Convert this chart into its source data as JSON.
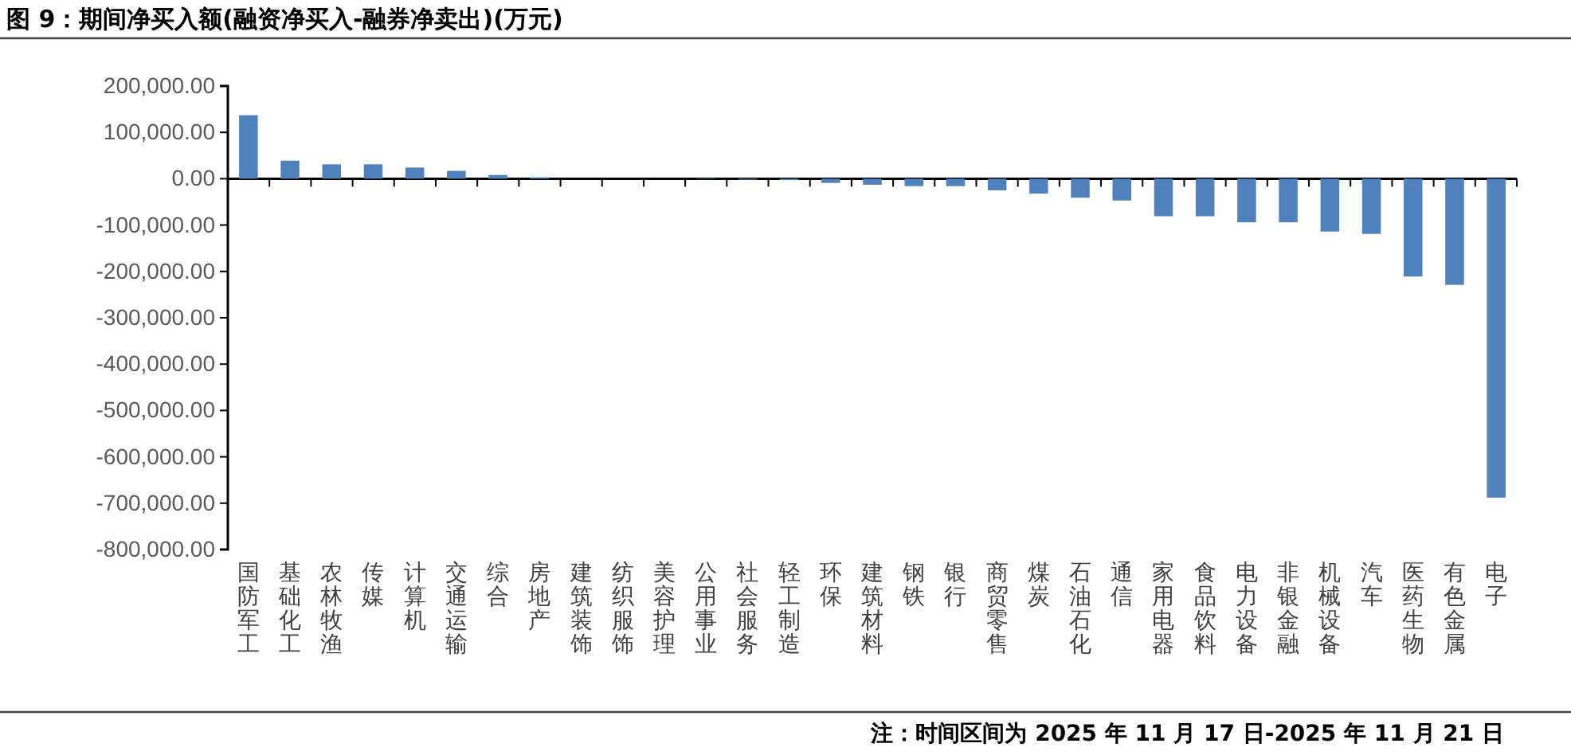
{
  "chart_data": {
    "type": "bar",
    "title": "图 9：期间净买入额(融资净买入-融券净卖出)(万元)",
    "categories": [
      "国防军工",
      "基础化工",
      "农林牧渔",
      "传媒",
      "计算机",
      "交通运输",
      "综合",
      "房地产",
      "建筑装饰",
      "纺织服饰",
      "美容护理",
      "公用事业",
      "社会服务",
      "轻工制造",
      "环保",
      "建筑材料",
      "钢铁",
      "银行",
      "商贸零售",
      "煤炭",
      "石油石化",
      "通信",
      "家用电器",
      "食品饮料",
      "电力设备",
      "非银金融",
      "机械设备",
      "汽车",
      "医药生物",
      "有色金属",
      "电子"
    ],
    "values": [
      137000,
      39000,
      31000,
      31000,
      24000,
      17000,
      8000,
      3000,
      0,
      0,
      0,
      -1000,
      -2000,
      -3000,
      -9000,
      -13000,
      -16000,
      -16000,
      -25000,
      -32000,
      -41000,
      -47000,
      -81000,
      -81000,
      -94000,
      -94000,
      -114000,
      -119000,
      -211000,
      -229000,
      -688000
    ],
    "color": "#4f81bd",
    "ylim": [
      -800000,
      200000
    ],
    "yticks": [
      {
        "value": 200000,
        "label": "200,000.00"
      },
      {
        "value": 100000,
        "label": "100,000.00"
      },
      {
        "value": 0,
        "label": "0.00"
      },
      {
        "value": -100000,
        "label": "-100,000.00"
      },
      {
        "value": -200000,
        "label": "-200,000.00"
      },
      {
        "value": -300000,
        "label": "-300,000.00"
      },
      {
        "value": -400000,
        "label": "-400,000.00"
      },
      {
        "value": -500000,
        "label": "-500,000.00"
      },
      {
        "value": -600000,
        "label": "-600,000.00"
      },
      {
        "value": -700000,
        "label": "-700,000.00"
      },
      {
        "value": -800000,
        "label": "-800,000.00"
      }
    ],
    "annotations": [
      "注：时间区间为 2025 年 11 月 17 日-2025 年 11 月 21 日"
    ]
  }
}
